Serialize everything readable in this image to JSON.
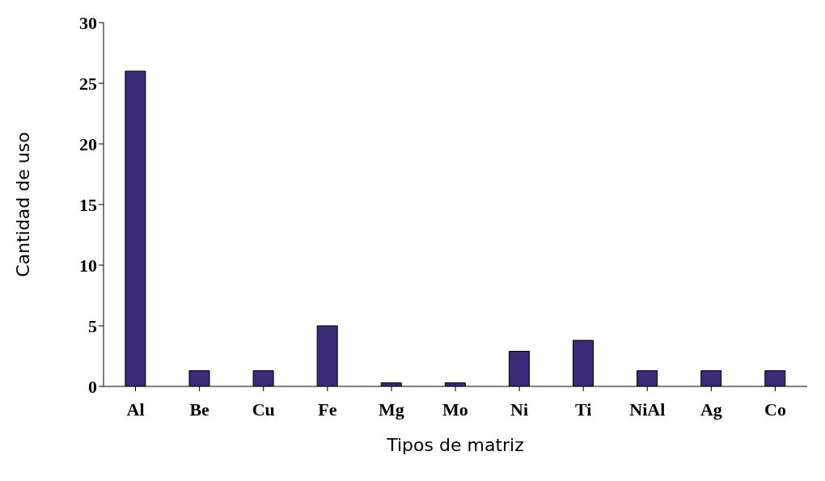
{
  "chart_data": {
    "type": "bar",
    "xlabel": "Tipos de matriz",
    "ylabel": "Cantidad de uso",
    "categories": [
      "Al",
      "Be",
      "Cu",
      "Fe",
      "Mg",
      "Mo",
      "Ni",
      "Ti",
      "NiAl",
      "Ag",
      "Co"
    ],
    "values": [
      26,
      1.3,
      1.3,
      5,
      0.3,
      0.3,
      2.9,
      3.8,
      1.3,
      1.3,
      1.3
    ],
    "color": "#3b2a78",
    "ylim": [
      0,
      30
    ],
    "yticks": [
      0,
      5,
      10,
      15,
      20,
      25,
      30
    ],
    "grid": false
  }
}
